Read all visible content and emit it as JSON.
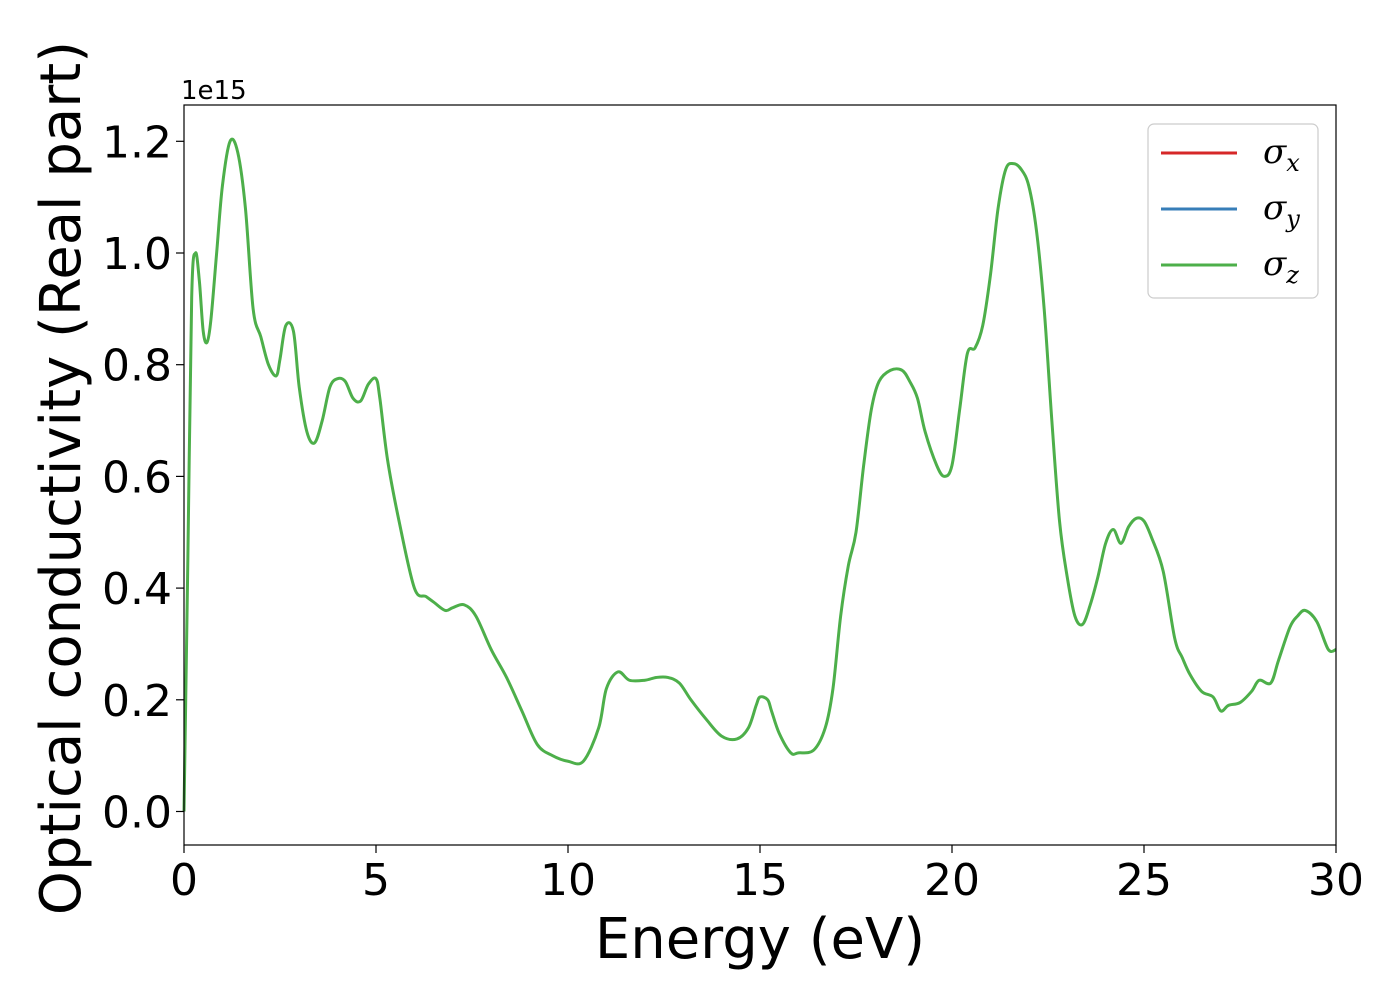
{
  "chart_data": {
    "type": "line",
    "xlabel": "Energy (eV)",
    "ylabel": "Optical conductivity (Real part)",
    "y_offset_label": "1e15",
    "xlim": [
      0,
      30
    ],
    "ylim": [
      -0.06,
      1.265
    ],
    "xticks": [
      0,
      5,
      10,
      15,
      20,
      25,
      30
    ],
    "xtick_labels": [
      "0",
      "5",
      "10",
      "15",
      "20",
      "25",
      "30"
    ],
    "yticks": [
      0.0,
      0.2,
      0.4,
      0.6,
      0.8,
      1.0,
      1.2
    ],
    "ytick_labels": [
      "0.0",
      "0.2",
      "0.4",
      "0.6",
      "0.8",
      "1.0",
      "1.2"
    ],
    "grid": false,
    "legend_position": "top-right",
    "legend": [
      {
        "symbol": "σ",
        "sub": "x",
        "color": "#d62728"
      },
      {
        "symbol": "σ",
        "sub": "y",
        "color": "#377eb8"
      },
      {
        "symbol": "σ",
        "sub": "z",
        "color": "#4daf4a"
      }
    ],
    "series": [
      {
        "color": "#4daf4a",
        "x": [
          0,
          0.1,
          0.2,
          0.3,
          0.4,
          0.5,
          0.6,
          0.7,
          0.85,
          1.0,
          1.2,
          1.4,
          1.6,
          1.8,
          2.0,
          2.2,
          2.4,
          2.5,
          2.65,
          2.85,
          3.0,
          3.2,
          3.4,
          3.6,
          3.8,
          4.0,
          4.2,
          4.4,
          4.6,
          4.8,
          5.0,
          5.1,
          5.3,
          5.6,
          6.0,
          6.3,
          6.5,
          6.8,
          7.0,
          7.3,
          7.6,
          8.0,
          8.4,
          8.8,
          9.2,
          9.6,
          10.0,
          10.4,
          10.8,
          11.0,
          11.3,
          11.6,
          12.0,
          12.3,
          12.6,
          12.9,
          13.2,
          13.6,
          14.0,
          14.4,
          14.7,
          14.9,
          15.0,
          15.2,
          15.3,
          15.5,
          15.8,
          16.0,
          16.4,
          16.7,
          16.9,
          17.1,
          17.3,
          17.5,
          17.7,
          17.9,
          18.1,
          18.4,
          18.7,
          18.9,
          19.1,
          19.3,
          19.6,
          19.8,
          20.0,
          20.2,
          20.4,
          20.6,
          20.8,
          21.0,
          21.2,
          21.4,
          21.6,
          21.8,
          22.0,
          22.2,
          22.4,
          22.6,
          22.8,
          23.0,
          23.2,
          23.4,
          23.6,
          23.8,
          24.0,
          24.2,
          24.4,
          24.6,
          24.8,
          25.0,
          25.2,
          25.5,
          25.8,
          26.0,
          26.2,
          26.5,
          26.8,
          27.0,
          27.2,
          27.5,
          27.8,
          28.0,
          28.3,
          28.5,
          28.8,
          29.0,
          29.2,
          29.5,
          29.8,
          30.0
        ],
        "y": [
          0.0,
          0.45,
          0.92,
          1.0,
          0.95,
          0.86,
          0.84,
          0.88,
          1.0,
          1.12,
          1.2,
          1.18,
          1.08,
          0.9,
          0.85,
          0.8,
          0.78,
          0.81,
          0.87,
          0.86,
          0.76,
          0.68,
          0.66,
          0.7,
          0.76,
          0.775,
          0.77,
          0.74,
          0.735,
          0.765,
          0.775,
          0.74,
          0.63,
          0.52,
          0.4,
          0.385,
          0.375,
          0.36,
          0.365,
          0.37,
          0.35,
          0.29,
          0.24,
          0.18,
          0.12,
          0.1,
          0.09,
          0.09,
          0.15,
          0.22,
          0.25,
          0.235,
          0.235,
          0.24,
          0.24,
          0.23,
          0.2,
          0.165,
          0.135,
          0.13,
          0.15,
          0.19,
          0.205,
          0.2,
          0.18,
          0.14,
          0.105,
          0.105,
          0.11,
          0.15,
          0.22,
          0.35,
          0.44,
          0.5,
          0.62,
          0.72,
          0.77,
          0.79,
          0.79,
          0.77,
          0.74,
          0.68,
          0.62,
          0.6,
          0.62,
          0.72,
          0.82,
          0.83,
          0.87,
          0.96,
          1.08,
          1.15,
          1.16,
          1.15,
          1.12,
          1.04,
          0.9,
          0.7,
          0.52,
          0.42,
          0.35,
          0.335,
          0.37,
          0.42,
          0.48,
          0.505,
          0.48,
          0.51,
          0.525,
          0.52,
          0.49,
          0.43,
          0.31,
          0.275,
          0.245,
          0.215,
          0.205,
          0.18,
          0.19,
          0.195,
          0.215,
          0.235,
          0.23,
          0.27,
          0.33,
          0.35,
          0.36,
          0.34,
          0.29,
          0.29
        ]
      }
    ]
  }
}
